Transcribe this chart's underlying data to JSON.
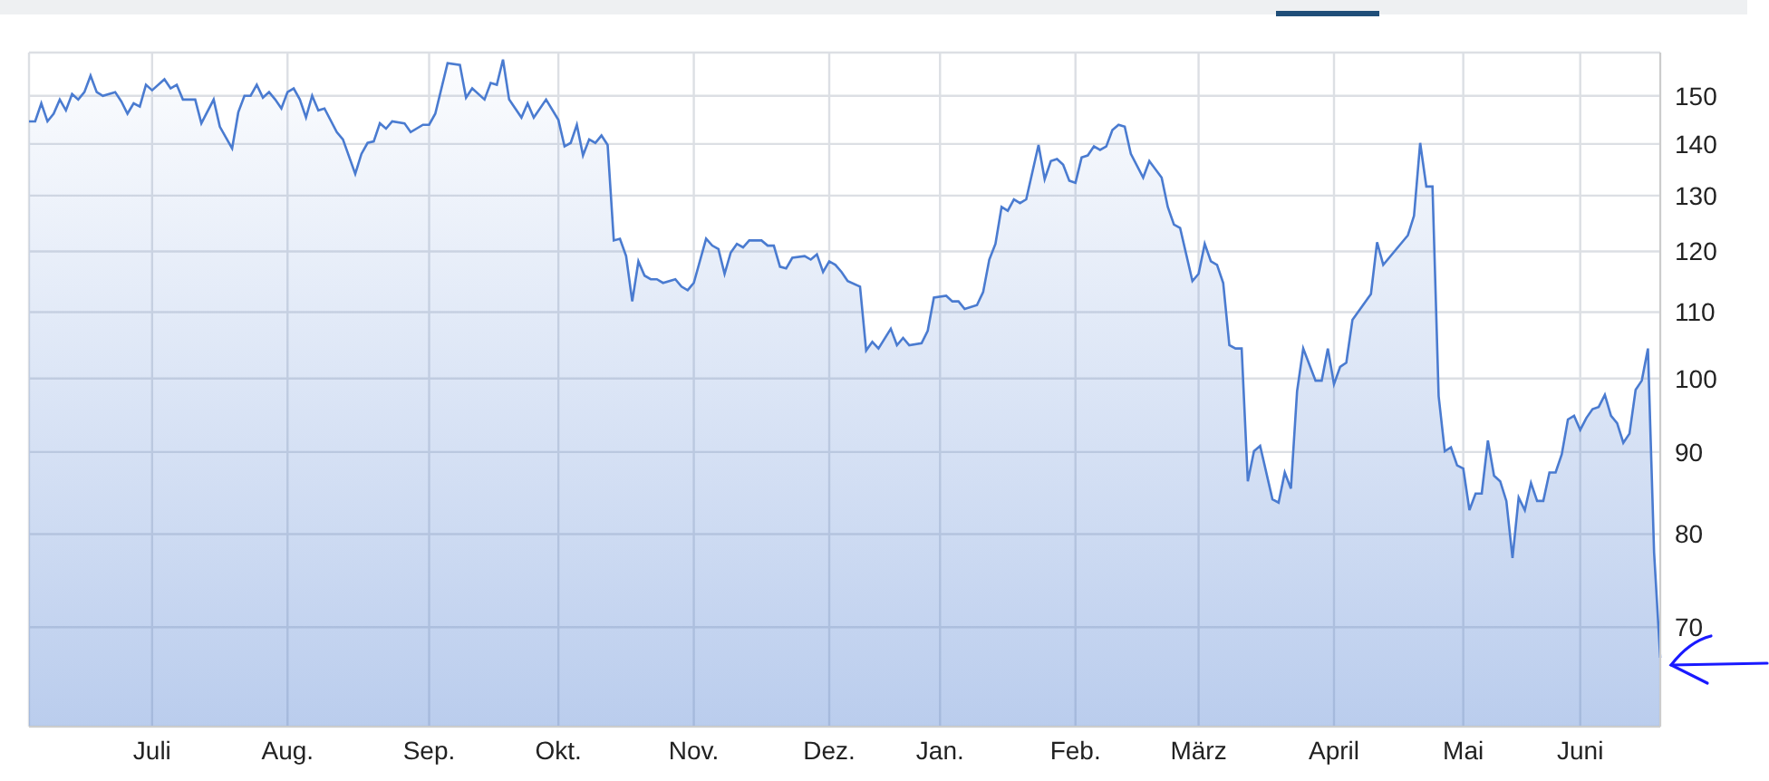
{
  "chart_data": {
    "type": "area",
    "categories": [
      null,
      null,
      null,
      null,
      null,
      null,
      null,
      null,
      null,
      null,
      null,
      null,
      null,
      null,
      null,
      null,
      null,
      null,
      null,
      null,
      "Juli",
      null,
      null,
      null,
      null,
      null,
      null,
      null,
      null,
      null,
      null,
      null,
      null,
      null,
      null,
      null,
      null,
      null,
      null,
      null,
      null,
      null,
      "Aug.",
      null,
      null,
      null,
      null,
      null,
      null,
      null,
      null,
      null,
      null,
      null,
      null,
      null,
      null,
      null,
      null,
      null,
      null,
      null,
      null,
      null,
      null,
      "Sep.",
      null,
      null,
      null,
      null,
      null,
      null,
      null,
      null,
      null,
      null,
      null,
      null,
      null,
      null,
      null,
      null,
      null,
      null,
      null,
      null,
      "Okt.",
      null,
      null,
      null,
      null,
      null,
      null,
      null,
      null,
      null,
      null,
      null,
      null,
      null,
      null,
      null,
      null,
      null,
      null,
      null,
      null,
      null,
      "Nov.",
      null,
      null,
      null,
      null,
      null,
      null,
      null,
      null,
      null,
      null,
      null,
      null,
      null,
      null,
      null,
      null,
      null,
      null,
      null,
      null,
      null,
      "Dez.",
      null,
      null,
      null,
      null,
      null,
      null,
      null,
      null,
      null,
      null,
      null,
      null,
      null,
      null,
      null,
      null,
      null,
      "Jan.",
      null,
      null,
      null,
      null,
      null,
      null,
      null,
      null,
      null,
      null,
      null,
      null,
      null,
      null,
      null,
      null,
      null,
      null,
      null,
      null,
      null,
      "Feb.",
      null,
      null,
      null,
      null,
      null,
      null,
      null,
      null,
      null,
      null,
      null,
      null,
      null,
      null,
      null,
      null,
      null,
      null,
      null,
      "März",
      null,
      null,
      null,
      null,
      null,
      null,
      null,
      null,
      null,
      null,
      null,
      null,
      null,
      null,
      null,
      null,
      null,
      null,
      null,
      null,
      null,
      "April",
      null,
      null,
      null,
      null,
      null,
      null,
      null,
      null,
      null,
      null,
      null,
      null,
      null,
      null,
      null,
      null,
      null,
      null,
      null,
      null,
      "Mai",
      null,
      null,
      null,
      null,
      null,
      null,
      null,
      null,
      null,
      null,
      null,
      null,
      null,
      null,
      null,
      null,
      null,
      null,
      "Juni",
      null,
      null,
      null,
      null,
      null,
      null,
      null,
      null,
      null,
      null,
      null,
      null,
      null
    ],
    "series": [
      {
        "color": "#4a7bd0",
        "values": [
          144.6,
          144.6,
          148.4,
          144.6,
          146.2,
          149.2,
          146.9,
          150.4,
          149.2,
          150.8,
          154.4,
          150.8,
          150,
          null,
          150.8,
          148.8,
          146.2,
          148.4,
          147.7,
          152.4,
          151.2,
          null,
          153.6,
          151.6,
          152.4,
          149.2,
          null,
          149.2,
          144.2,
          null,
          149.2,
          143.5,
          null,
          139.1,
          146.5,
          150,
          150,
          152.4,
          149.6,
          150.8,
          149.2,
          147.3,
          150.8,
          151.6,
          149.2,
          145.4,
          150,
          146.9,
          147.3,
          null,
          142.4,
          140.9,
          null,
          134.1,
          138.0,
          140.2,
          140.5,
          144.2,
          143.1,
          144.6,
          null,
          144.2,
          142.4,
          null,
          143.9,
          143.9,
          146.2,
          null,
          157.2,
          null,
          156.8,
          149.6,
          151.6,
          null,
          149.2,
          152.8,
          152.4,
          158.0,
          149.2,
          null,
          145.4,
          148.4,
          145.4,
          null,
          149.2,
          null,
          144.9,
          139.5,
          140.2,
          143.9,
          137.7,
          140.9,
          140.2,
          141.7,
          139.8,
          121.9,
          122.2,
          119.2,
          111.7,
          118.3,
          115.9,
          115.3,
          115.3,
          114.7,
          null,
          115.3,
          114.1,
          113.5,
          114.7,
          null,
          122.2,
          121.0,
          120.4,
          116.2,
          119.8,
          121.3,
          120.7,
          121.9,
          null,
          121.9,
          121.0,
          121.0,
          117.4,
          117.1,
          118.9,
          null,
          119.2,
          118.6,
          119.5,
          116.5,
          118.3,
          117.7,
          116.5,
          115.0,
          null,
          114.1,
          104.1,
          105.4,
          104.4,
          null,
          107.4,
          104.9,
          106.0,
          104.9,
          null,
          105.2,
          107.1,
          112.3,
          null,
          112.6,
          111.7,
          111.7,
          110.5,
          null,
          111.1,
          113.2,
          118.6,
          121.3,
          127.9,
          127.2,
          129.3,
          128.6,
          129.3,
          null,
          139.8,
          133.1,
          136.6,
          137.0,
          135.9,
          132.8,
          132.4,
          137.3,
          137.7,
          139.5,
          138.8,
          139.5,
          142.8,
          143.9,
          143.5,
          138.0,
          null,
          133.4,
          136.6,
          null,
          133.4,
          127.9,
          124.7,
          124.1,
          null,
          115.0,
          116.2,
          121.3,
          118.3,
          117.7,
          114.7,
          104.9,
          104.4,
          104.4,
          86.3,
          90.1,
          90.8,
          null,
          84.1,
          83.7,
          87.4,
          85.4,
          98.2,
          104.4,
          null,
          99.7,
          99.7,
          104.4,
          99.2,
          101.7,
          102.3,
          108.8,
          null,
          null,
          112.9,
          121.6,
          117.7,
          null,
          null,
          null,
          122.8,
          126.3,
          140.2,
          131.7,
          131.7,
          97.5,
          90.1,
          90.6,
          88.3,
          87.9,
          82.8,
          84.8,
          84.8,
          91.5,
          87.0,
          86.3,
          83.9,
          77.3,
          84.3,
          82.8,
          86.1,
          83.9,
          83.9,
          87.4,
          87.4,
          89.7,
          94.3,
          94.8,
          92.9,
          94.5,
          95.7,
          96.0,
          97.7,
          94.8,
          93.8,
          91.2,
          92.4,
          98.4,
          99.7,
          104.4,
          77.9,
          67.0
        ]
      }
    ],
    "ylim": [
      60.7,
      159.6
    ],
    "yticks": [
      70,
      80,
      90,
      100,
      110,
      120,
      130,
      140,
      150
    ],
    "log": true,
    "grid": true
  }
}
